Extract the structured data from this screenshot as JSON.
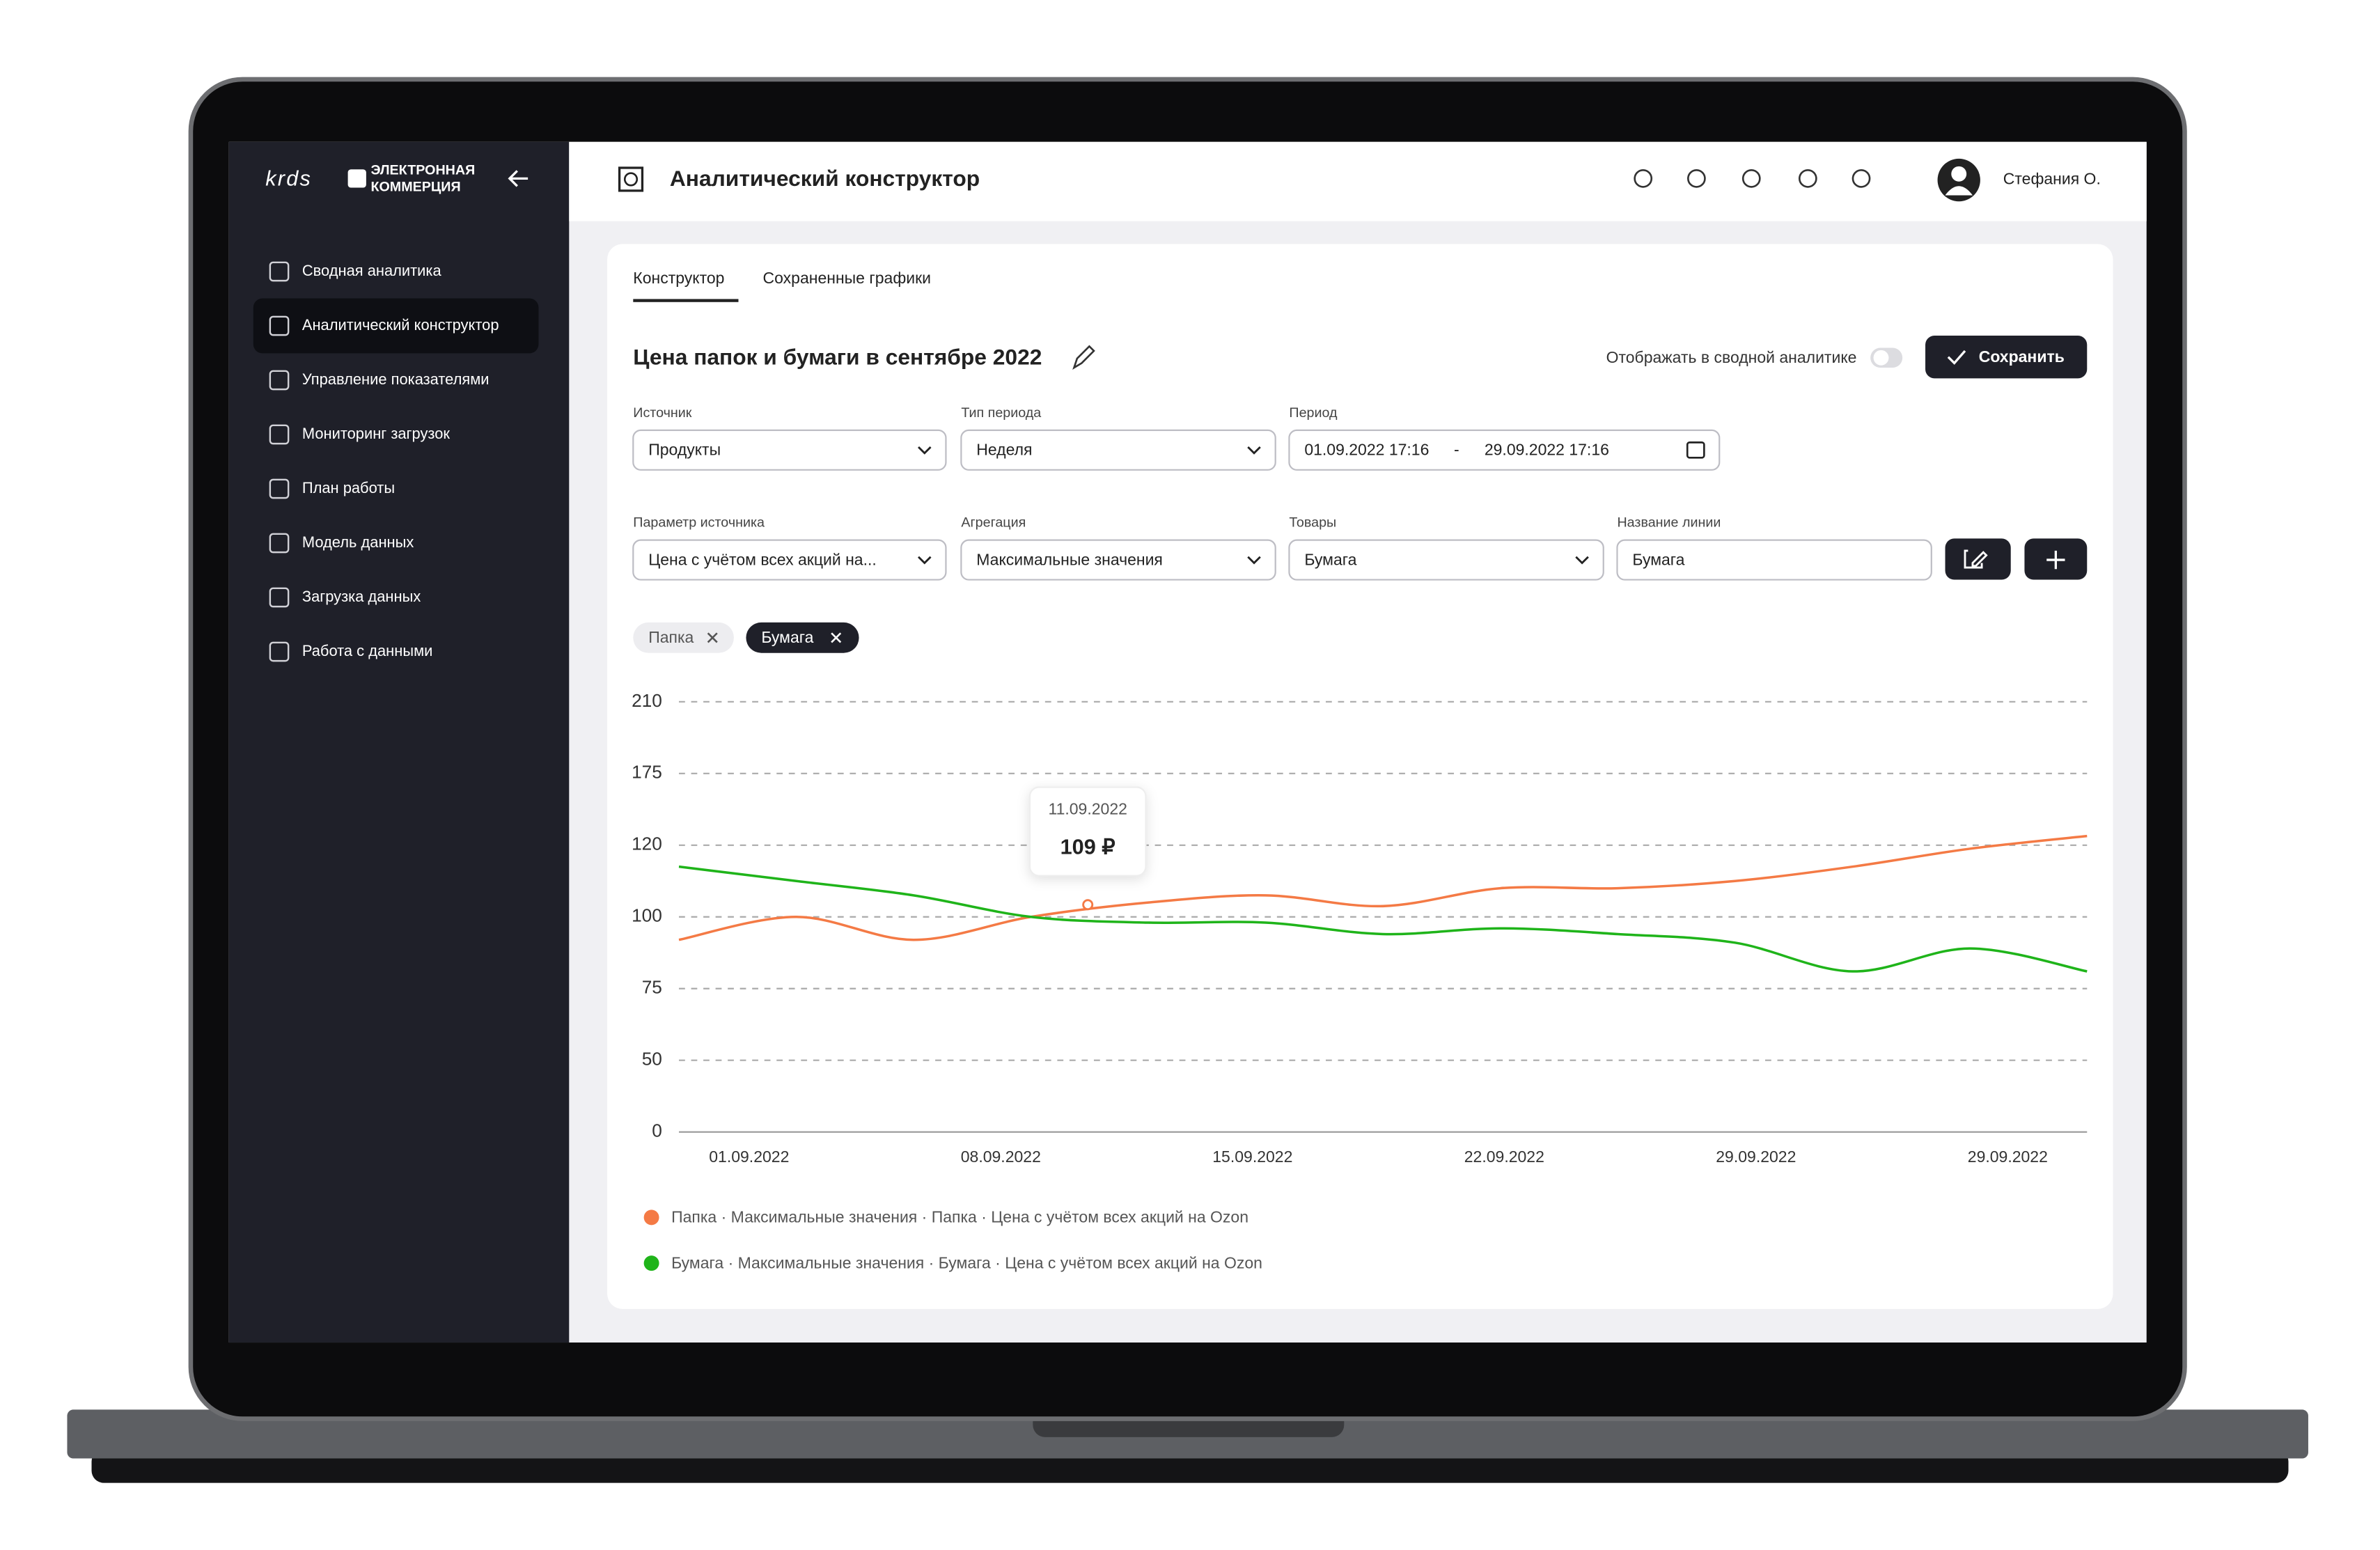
{
  "sidebar": {
    "logo": {
      "brand": "krds",
      "line1": "ЭЛЕКТРОННАЯ",
      "line2": "КОММЕРЦИЯ"
    },
    "menu": [
      "Сводная аналитика",
      "Аналитический конструктор",
      "Управление показателями",
      "Мониторинг загрузок",
      "План работы",
      "Модель данных",
      "Загрузка данных",
      "Работа с данными"
    ]
  },
  "header": {
    "title": "Аналитический конструктор",
    "user": "Стефания О."
  },
  "tabs": [
    "Конструктор",
    "Сохраненные графики"
  ],
  "editor": {
    "title": "Цена папок и бумаги в сентябре 2022",
    "toggle_label": "Отображать в сводной аналитике",
    "save": "Сохранить"
  },
  "filters": {
    "source": {
      "label": "Источник",
      "value": "Продукты"
    },
    "period_type": {
      "label": "Тип периода",
      "value": "Неделя"
    },
    "period": {
      "label": "Период",
      "from": "01.09.2022 17:16",
      "separator": "-",
      "to": "29.09.2022 17:16"
    },
    "parameter": {
      "label": "Параметр источника",
      "value": "Цена с учётом всех акций на..."
    },
    "aggregation": {
      "label": "Агрегация",
      "value": "Максимальные значения"
    },
    "goods": {
      "label": "Товары",
      "value": "Бумага"
    },
    "line_name": {
      "label": "Название линии",
      "value": "Бумага"
    }
  },
  "chips": [
    "Папка",
    "Бумага"
  ],
  "chart_data": {
    "type": "line",
    "x_labels": [
      "01.09.2022",
      "08.09.2022",
      "15.09.2022",
      "22.09.2022",
      "29.09.2022",
      "29.09.2022"
    ],
    "ylim": [
      0,
      210
    ],
    "yticks": [
      0,
      50,
      75,
      100,
      120,
      175,
      210
    ],
    "grid": true,
    "series": [
      {
        "name": "Папка · Максимальные значения · Папка · Цена с учётом всех акций на Ozon",
        "color": "#f47a45",
        "values": [
          92,
          100,
          92,
          100,
          104,
          106,
          103,
          108,
          108,
          110,
          114,
          119,
          127
        ]
      },
      {
        "name": "Бумага · Максимальные значения · Бумага · Цена с учётом всех акций на Ozon",
        "color": "#1fb41a",
        "values": [
          114,
          110,
          106,
          100,
          98,
          98,
          94,
          96,
          94,
          91,
          81,
          89,
          81
        ]
      }
    ],
    "tooltip": {
      "date": "11.09.2022",
      "value": "109 ₽"
    }
  }
}
